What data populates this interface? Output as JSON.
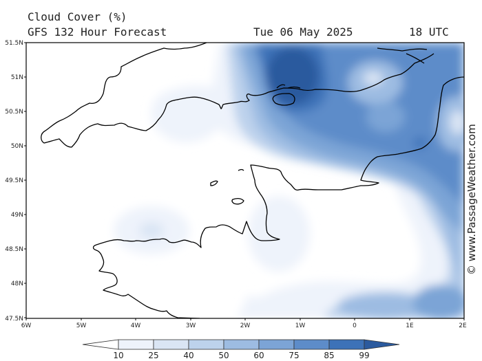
{
  "header": {
    "title": "Cloud Cover (%)",
    "subtitle": "GFS 132 Hour Forecast",
    "date": "Tue 06 May 2025",
    "time": "18 UTC"
  },
  "credit": "© www.PassageWeather.com",
  "axes": {
    "lat_labels": [
      "51.5N",
      "51N",
      "50.5N",
      "50N",
      "49.5N",
      "49N",
      "48.5N",
      "48N",
      "47.5N"
    ],
    "lon_labels": [
      "6W",
      "5W",
      "4W",
      "3W",
      "2W",
      "1W",
      "0",
      "1E",
      "2E"
    ]
  },
  "colorbar": {
    "levels": [
      "10",
      "25",
      "40",
      "50",
      "60",
      "75",
      "85",
      "99"
    ],
    "colors": [
      "#ffffff",
      "#eef3fb",
      "#dae5f4",
      "#bdd2ec",
      "#9dbce2",
      "#7ca4d6",
      "#5d8cc9",
      "#3d72b8",
      "#2b5a9e"
    ]
  },
  "map": {
    "region": "English Channel, Brittany and Normandy",
    "coastline_color": "#000000"
  }
}
